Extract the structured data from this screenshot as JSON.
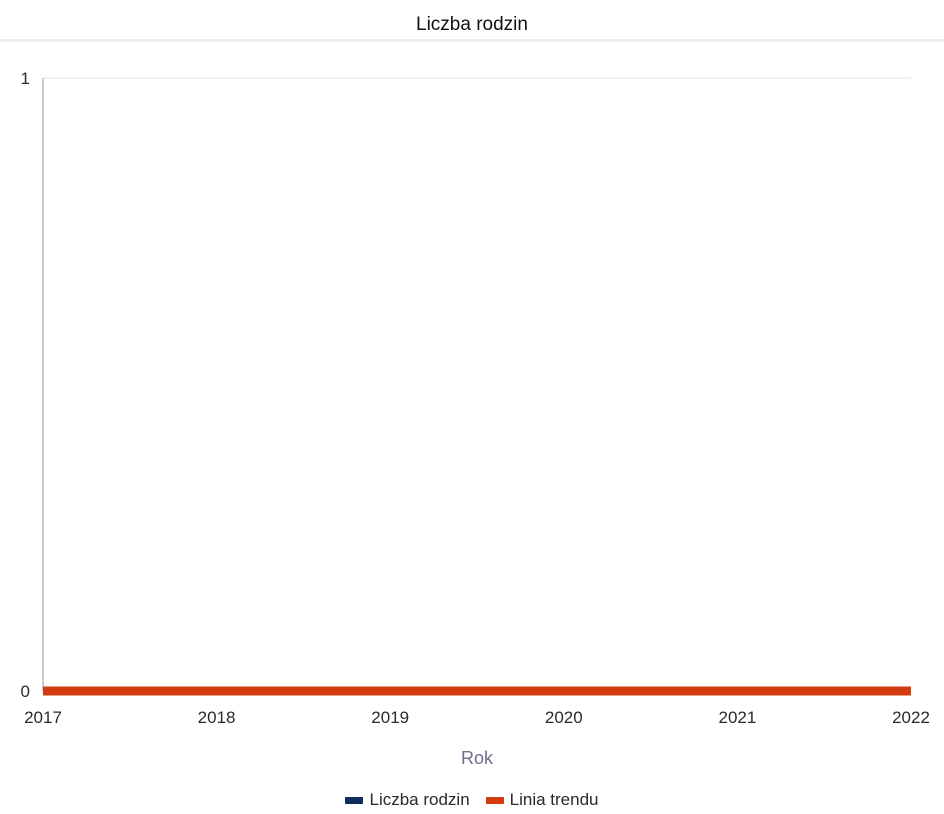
{
  "chart_data": {
    "type": "line",
    "title": "Liczba rodzin",
    "xlabel": "Rok",
    "ylabel": "",
    "x": [
      2017,
      2018,
      2019,
      2020,
      2021,
      2022
    ],
    "x_ticks": [
      "2017",
      "2018",
      "2019",
      "2020",
      "2021",
      "2022"
    ],
    "y_ticks": [
      "0",
      "1"
    ],
    "ylim": [
      0,
      1
    ],
    "xlim": [
      2017,
      2022
    ],
    "grid": true,
    "legend_position": "bottom",
    "series": [
      {
        "name": "Liczba rodzin",
        "values": [
          0,
          0,
          0,
          0,
          0,
          0
        ],
        "color": "#0b2e5c"
      },
      {
        "name": "Linia trendu",
        "values": [
          0,
          0,
          0,
          0,
          0,
          0
        ],
        "color": "#d13b0f"
      }
    ]
  }
}
